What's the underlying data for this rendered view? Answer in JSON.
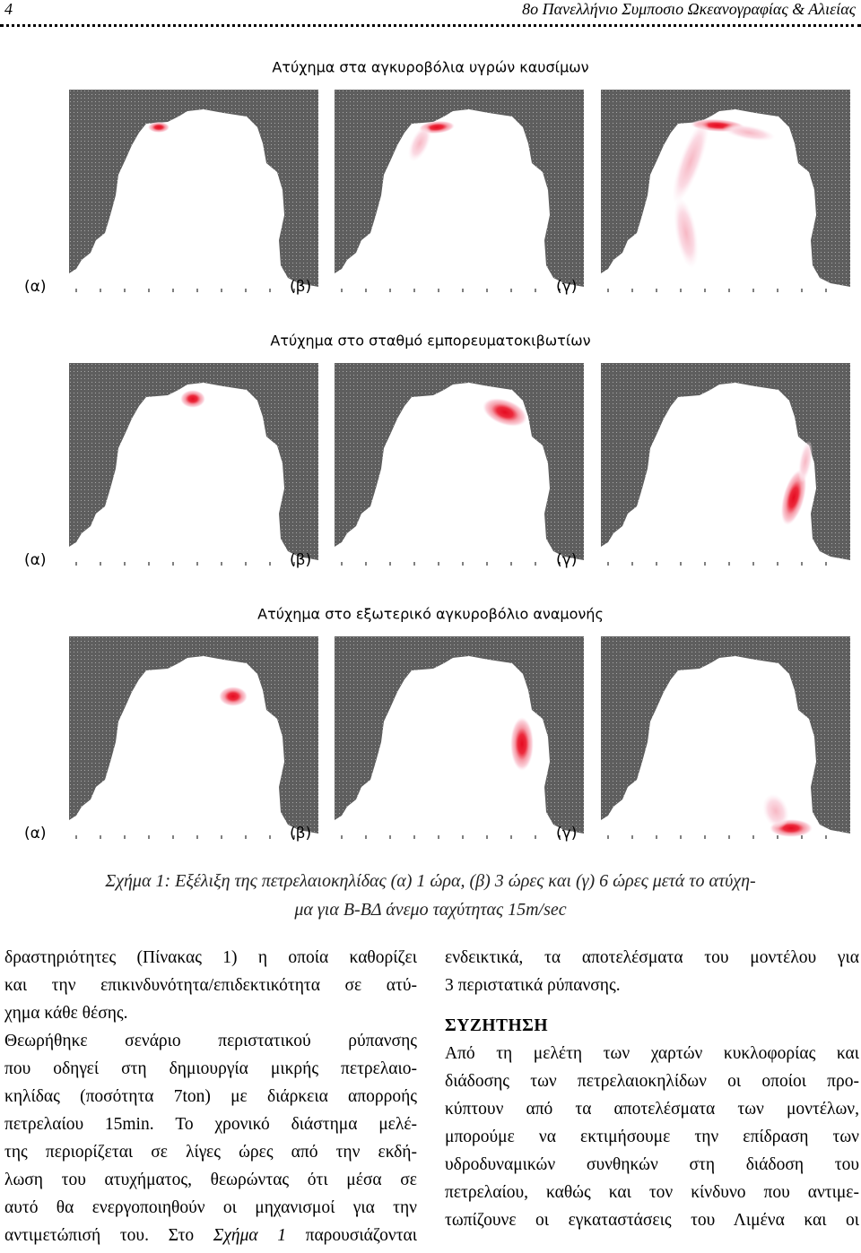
{
  "header": {
    "page_number": "4",
    "journal": "8ο Πανελλήνιο Συμποσιο Ωκεανογραφίας & Αλιείας"
  },
  "figure": {
    "rows": [
      {
        "title": "Ατύχημα στα αγκυροβόλια υγρών καυσίμων",
        "panels": [
          {
            "label": "(α)"
          },
          {
            "label": "(β)"
          },
          {
            "label": "(γ)"
          }
        ]
      },
      {
        "title": "Ατύχημα στο σταθμό εμπορευματοκιβωτίων",
        "panels": [
          {
            "label": "(α)"
          },
          {
            "label": "(β)"
          },
          {
            "label": "(γ)"
          }
        ]
      },
      {
        "title": "Ατύχημα στο εξωτερικό αγκυροβόλιο αναμονής",
        "panels": [
          {
            "label": "(α)"
          },
          {
            "label": "(β)"
          },
          {
            "label": "(γ)"
          }
        ]
      }
    ],
    "caption": [
      "Σχήμα 1: Εξέλιξη της πετρελαιοκηλίδας (α) 1 ώρα, (β) 3 ώρες και (γ) 6 ώρες μετά το ατύχη-",
      "μα για Β-ΒΔ άνεμο ταχύτητας 15m/sec"
    ]
  },
  "body": {
    "left_column": {
      "lines": [
        "δραστηριότητες (Πίνακας 1) η οποία καθορίζει",
        "και την επικινδυνότητα/επιδεκτικότητα σε ατύ-",
        "χημα κάθε θέσης.",
        "Θεωρήθηκε σενάριο περιστατικού ρύπανσης",
        "που οδηγεί στη δημιουργία μικρής πετρελαιο-",
        "κηλίδας (ποσότητα 7ton) με διάρκεια απορροής",
        "πετρελαίου 15min. Το χρονικό διάστημα μελέ-",
        "της περιορίζεται σε λίγες ώρες από την εκδή-",
        "λωση του ατυχήματος, θεωρώντας ότι μέσα σε",
        "αυτό θα ενεργοποιηθούν οι μηχανισμοί για την",
        {
          "before": "αντιμετώπισή του. Στο",
          "emphasis": "Σχήμα 1",
          "after": "παρουσιάζονται"
        }
      ]
    },
    "right_column": {
      "intro_lines": [
        "ενδεικτικά, τα αποτελέσματα του μοντέλου για",
        "3 περιστατικά ρύπανσης."
      ],
      "heading": "ΣΥΖΗΤΗΣΗ",
      "lines": [
        "Από τη μελέτη των χαρτών κυκλοφορίας και",
        "διάδοσης των πετρελαιοκηλίδων οι οποίοι προ-",
        "κύπτουν από τα αποτελέσματα των μοντέλων,",
        "μπορούμε να εκτιμήσουμε την επίδραση των",
        "υδροδυναμικών συνθηκών στη διάδοση του",
        "πετρελαίου, καθώς και τον κίνδυνο που αντιμε-",
        "τωπίζουνε οι εγκαταστάσεις του Λιμένα και οι"
      ]
    }
  }
}
